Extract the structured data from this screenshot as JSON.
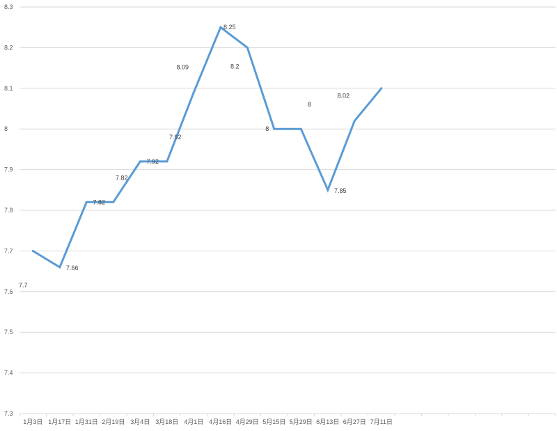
{
  "chart_data": {
    "type": "line",
    "title": "",
    "xlabel": "",
    "ylabel": "",
    "ylim": [
      7.3,
      8.3
    ],
    "y_ticks": [
      "7.3",
      "7.4",
      "7.5",
      "7.6",
      "7.7",
      "7.8",
      "7.9",
      "8",
      "8.1",
      "8.2",
      "8.3"
    ],
    "grid": true,
    "categories": [
      "1月3日",
      "1月17日",
      "1月31日",
      "2月19日",
      "3月4日",
      "3月18日",
      "4月1日",
      "4月16日",
      "4月29日",
      "5月15日",
      "5月29日",
      "6月13日",
      "6月27日",
      "7月11日"
    ],
    "extra_empty_categories": 6,
    "series": [
      {
        "values": [
          7.7,
          7.66,
          7.82,
          7.82,
          7.92,
          7.92,
          8.09,
          8.25,
          8.2,
          8,
          8,
          7.85,
          8.02,
          8.1
        ],
        "data_labels": [
          "7.7",
          "7.66",
          "7.82",
          "7.82",
          "7.92",
          "7.92",
          "8.09",
          "8.25",
          "8.2",
          "8",
          "8",
          "7.85",
          "8.02",
          ""
        ],
        "color": "#5b9bd5"
      }
    ]
  }
}
